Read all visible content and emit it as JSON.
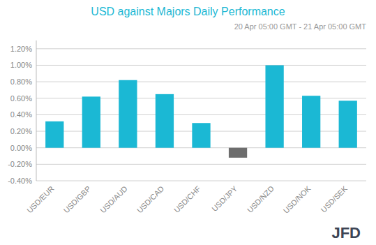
{
  "chart_data": {
    "type": "bar",
    "title": "USD against Majors Daily Performance",
    "subtitle": "20 Apr 05:00 GMT - 21 Apr  05:00 GMT",
    "annotations": [
      "JFD"
    ],
    "categories": [
      "USD/EUR",
      "USD/GBP",
      "USD/AUD",
      "USD/CAD",
      "USD/CHF",
      "USD/JPY",
      "USD/NZD",
      "USD/NOK",
      "USD/SEK"
    ],
    "values": [
      0.0032,
      0.0062,
      0.0082,
      0.0065,
      0.003,
      -0.0012,
      0.01,
      0.0063,
      0.0057
    ],
    "colors": [
      "#1bb8d4",
      "#1bb8d4",
      "#1bb8d4",
      "#1bb8d4",
      "#1bb8d4",
      "#6d6d6d",
      "#1bb8d4",
      "#1bb8d4",
      "#1bb8d4"
    ],
    "ylim": [
      -0.004,
      0.013
    ],
    "yticks": [
      {
        "value": -0.004,
        "label": "-0.40%"
      },
      {
        "value": -0.002,
        "label": "-0.20%"
      },
      {
        "value": 0.0,
        "label": "0.00%"
      },
      {
        "value": 0.002,
        "label": "0.20%"
      },
      {
        "value": 0.004,
        "label": "0.40%"
      },
      {
        "value": 0.006,
        "label": "0.60%"
      },
      {
        "value": 0.008,
        "label": "0.80%"
      },
      {
        "value": 0.01,
        "label": "1.00%"
      },
      {
        "value": 0.012,
        "label": "1.20%"
      }
    ],
    "grid": true
  }
}
